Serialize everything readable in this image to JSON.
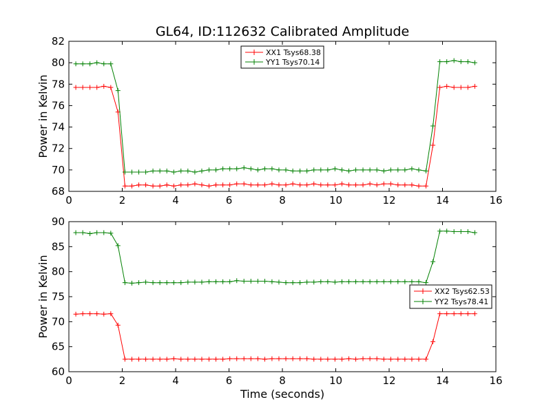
{
  "chart_data": {
    "title": "GL64, ID:112632 Calibrated Amplitude",
    "xlabel": "Time (seconds)",
    "panels": [
      {
        "type": "line",
        "ylabel": "Power in Kelvin",
        "xlim": [
          0,
          16
        ],
        "ylim": [
          68,
          82
        ],
        "xticks": [
          "0",
          "2",
          "4",
          "6",
          "8",
          "10",
          "12",
          "14",
          "16"
        ],
        "yticks": [
          "68",
          "70",
          "72",
          "74",
          "76",
          "78",
          "80",
          "82"
        ],
        "legend_position": "top-center",
        "x": [
          0.26,
          0.52,
          0.79,
          1.05,
          1.31,
          1.57,
          1.84,
          2.1,
          2.36,
          2.62,
          2.88,
          3.15,
          3.41,
          3.67,
          3.93,
          4.2,
          4.46,
          4.72,
          4.98,
          5.25,
          5.51,
          5.77,
          6.03,
          6.29,
          6.56,
          6.82,
          7.08,
          7.34,
          7.61,
          7.87,
          8.13,
          8.39,
          8.66,
          8.92,
          9.18,
          9.44,
          9.7,
          9.97,
          10.23,
          10.49,
          10.75,
          11.02,
          11.28,
          11.54,
          11.8,
          12.06,
          12.33,
          12.59,
          12.85,
          13.11,
          13.38,
          13.64,
          13.9,
          14.16,
          14.43,
          14.69,
          14.95,
          15.21
        ],
        "series": [
          {
            "name": "XX1 Tsys68.38",
            "color": "#ff0000",
            "values": [
              77.7,
              77.7,
              77.7,
              77.7,
              77.8,
              77.7,
              75.4,
              68.5,
              68.5,
              68.6,
              68.6,
              68.5,
              68.5,
              68.6,
              68.5,
              68.6,
              68.6,
              68.7,
              68.6,
              68.5,
              68.6,
              68.6,
              68.6,
              68.7,
              68.7,
              68.6,
              68.6,
              68.6,
              68.7,
              68.6,
              68.6,
              68.7,
              68.6,
              68.6,
              68.7,
              68.6,
              68.6,
              68.6,
              68.7,
              68.6,
              68.6,
              68.6,
              68.7,
              68.6,
              68.7,
              68.7,
              68.6,
              68.6,
              68.6,
              68.5,
              68.5,
              72.3,
              77.7,
              77.8,
              77.7,
              77.7,
              77.7,
              77.8
            ]
          },
          {
            "name": "YY1 Tsys70.14",
            "color": "#008000",
            "values": [
              79.9,
              79.9,
              79.9,
              80.0,
              79.9,
              79.9,
              77.4,
              69.8,
              69.8,
              69.8,
              69.8,
              69.9,
              69.9,
              69.9,
              69.8,
              69.9,
              69.9,
              69.8,
              69.9,
              70.0,
              70.0,
              70.1,
              70.1,
              70.1,
              70.2,
              70.1,
              70.0,
              70.1,
              70.1,
              70.0,
              70.0,
              69.9,
              69.9,
              69.9,
              70.0,
              70.0,
              70.0,
              70.1,
              70.0,
              69.9,
              70.0,
              70.0,
              70.0,
              70.0,
              69.9,
              70.0,
              70.0,
              70.0,
              70.1,
              70.0,
              69.9,
              74.1,
              80.1,
              80.1,
              80.2,
              80.1,
              80.1,
              80.0
            ]
          }
        ]
      },
      {
        "type": "line",
        "ylabel": "Power in Kelvin",
        "xlim": [
          0,
          16
        ],
        "ylim": [
          60,
          90
        ],
        "xticks": [
          "0",
          "2",
          "4",
          "6",
          "8",
          "10",
          "12",
          "14",
          "16"
        ],
        "yticks": [
          "60",
          "65",
          "70",
          "75",
          "80",
          "85",
          "90"
        ],
        "legend_position": "center-right",
        "x": [
          0.26,
          0.52,
          0.79,
          1.05,
          1.31,
          1.57,
          1.84,
          2.1,
          2.36,
          2.62,
          2.88,
          3.15,
          3.41,
          3.67,
          3.93,
          4.2,
          4.46,
          4.72,
          4.98,
          5.25,
          5.51,
          5.77,
          6.03,
          6.29,
          6.56,
          6.82,
          7.08,
          7.34,
          7.61,
          7.87,
          8.13,
          8.39,
          8.66,
          8.92,
          9.18,
          9.44,
          9.7,
          9.97,
          10.23,
          10.49,
          10.75,
          11.02,
          11.28,
          11.54,
          11.8,
          12.06,
          12.33,
          12.59,
          12.85,
          13.11,
          13.38,
          13.64,
          13.9,
          14.16,
          14.43,
          14.69,
          14.95,
          15.21
        ],
        "series": [
          {
            "name": "XX2 Tsys62.53",
            "color": "#ff0000",
            "values": [
              71.5,
              71.6,
              71.6,
              71.6,
              71.5,
              71.6,
              69.3,
              62.5,
              62.5,
              62.5,
              62.5,
              62.5,
              62.5,
              62.5,
              62.6,
              62.5,
              62.5,
              62.5,
              62.5,
              62.5,
              62.5,
              62.5,
              62.6,
              62.6,
              62.6,
              62.6,
              62.6,
              62.5,
              62.6,
              62.6,
              62.6,
              62.6,
              62.6,
              62.6,
              62.5,
              62.5,
              62.5,
              62.5,
              62.5,
              62.6,
              62.5,
              62.6,
              62.6,
              62.6,
              62.5,
              62.5,
              62.5,
              62.5,
              62.5,
              62.5,
              62.5,
              66.0,
              71.6,
              71.6,
              71.6,
              71.6,
              71.6,
              71.6
            ]
          },
          {
            "name": "YY2 Tsys78.41",
            "color": "#008000",
            "values": [
              87.8,
              87.8,
              87.6,
              87.8,
              87.8,
              87.7,
              85.2,
              77.8,
              77.7,
              77.8,
              77.9,
              77.8,
              77.8,
              77.8,
              77.8,
              77.8,
              77.9,
              77.9,
              77.9,
              78.0,
              78.0,
              78.0,
              78.0,
              78.2,
              78.1,
              78.1,
              78.1,
              78.1,
              78.0,
              77.9,
              77.8,
              77.8,
              77.8,
              77.9,
              77.9,
              78.0,
              78.0,
              77.9,
              78.0,
              78.0,
              78.0,
              78.0,
              78.0,
              78.0,
              78.0,
              78.0,
              78.0,
              78.0,
              78.0,
              78.0,
              77.8,
              82.0,
              88.1,
              88.1,
              88.0,
              88.0,
              88.0,
              87.8
            ]
          }
        ]
      }
    ]
  }
}
